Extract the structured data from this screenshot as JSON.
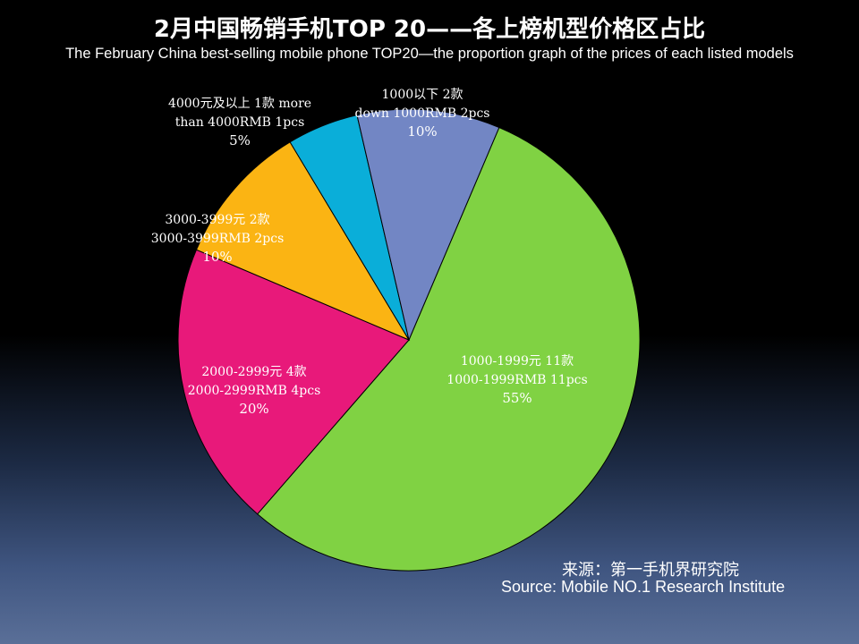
{
  "chart_data": {
    "type": "pie",
    "title": "2月中国畅销手机TOP 20——各上榜机型价格区占比",
    "subtitle": "The  February China best-selling mobile phone TOP20—the proportion graph of the prices of each listed models",
    "slices": [
      {
        "label_lines": [
          "1000-1999元 11款",
          "1000-1999RMB 11pcs",
          "55%"
        ],
        "count": 11,
        "percent": 55,
        "color": "#80d243"
      },
      {
        "label_lines": [
          "2000-2999元 4款",
          "2000-2999RMB 4pcs",
          "20%"
        ],
        "count": 4,
        "percent": 20,
        "color": "#e8197a"
      },
      {
        "label_lines": [
          "3000-3999元 2款",
          "3000-3999RMB 2pcs",
          "10%"
        ],
        "count": 2,
        "percent": 10,
        "color": "#fbb413"
      },
      {
        "label_lines": [
          "4000元及以上 1款 more",
          "than 4000RMB 1pcs",
          "5%"
        ],
        "count": 1,
        "percent": 5,
        "color": "#0aaed9"
      },
      {
        "label_lines": [
          "1000以下 2款",
          "down 1000RMB 2pcs",
          "10%"
        ],
        "count": 2,
        "percent": 10,
        "color": "#7286c4"
      }
    ]
  },
  "source": {
    "cn": "来源：第一手机界研究院",
    "en": "Source: Mobile NO.1 Research Institute"
  }
}
